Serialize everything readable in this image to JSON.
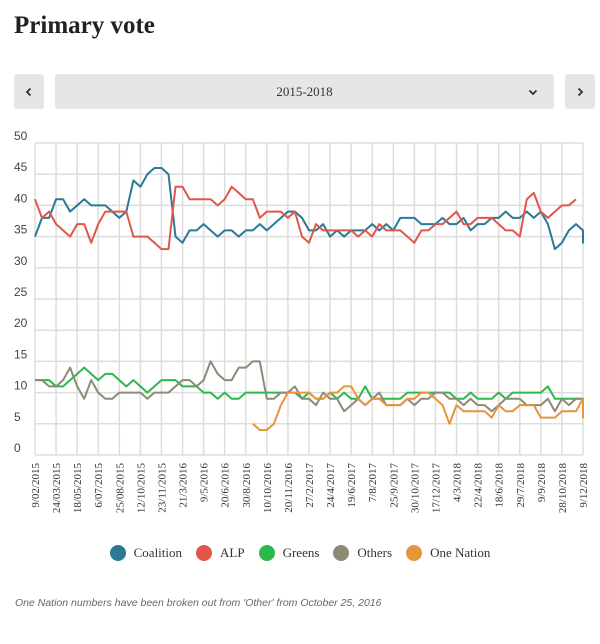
{
  "page": {
    "title": "Primary vote",
    "prev_icon": "chevron-left-icon",
    "next_icon": "chevron-right-icon",
    "period_select": {
      "value": "2015-2018",
      "icon": "chevron-down-icon"
    },
    "footnote": "One Nation numbers have been broken out from 'Other' from October 25, 2016"
  },
  "chart_data": {
    "type": "line",
    "title": "",
    "xlabel": "",
    "ylabel": "",
    "ylim": [
      0,
      50
    ],
    "yticks": [
      0,
      5,
      10,
      15,
      20,
      25,
      30,
      35,
      40,
      45,
      50
    ],
    "grid": true,
    "legend_position": "bottom-center",
    "x_tick_labels": [
      "9/02/2015",
      "24/03/2015",
      "18/05/2015",
      "6/07/2015",
      "25/08/2015",
      "12/10/2015",
      "23/11/2015",
      "21/3/2016",
      "9/5/2016",
      "20/6/2016",
      "30/8/2016",
      "10/10/2016",
      "20/11/2016",
      "27/2/2017",
      "24/4/2017",
      "19/6/2017",
      "7/8/2017",
      "25/9/2017",
      "30/10/2017",
      "17/12/2017",
      "4/3/2018",
      "22/4/2018",
      "18/6/2018",
      "29/7/2018",
      "9/9/2018",
      "28/10/2018",
      "9/12/2018"
    ],
    "points_per_tick_interval": 3,
    "series": [
      {
        "name": "Coalition",
        "color": "#2a7a96",
        "values": [
          35,
          38,
          38,
          41,
          41,
          39,
          40,
          41,
          40,
          40,
          40,
          39,
          38,
          39,
          44,
          43,
          45,
          46,
          46,
          45,
          35,
          34,
          36,
          36,
          37,
          36,
          35,
          36,
          36,
          35,
          36,
          36,
          37,
          36,
          37,
          38,
          39,
          39,
          38,
          36,
          36,
          37,
          35,
          36,
          35,
          36,
          36,
          36,
          37,
          36,
          37,
          36,
          38,
          38,
          38,
          37,
          37,
          37,
          38,
          37,
          37,
          38,
          36,
          37,
          37,
          38,
          38,
          39,
          38,
          38,
          39,
          38,
          39,
          37,
          33,
          34,
          36,
          37,
          36,
          35,
          34,
          35
        ],
        "start_index": 0
      },
      {
        "name": "ALP",
        "color": "#e0574a",
        "values": [
          41,
          38,
          39,
          37,
          36,
          35,
          37,
          37,
          34,
          37,
          39,
          39,
          39,
          39,
          35,
          35,
          35,
          34,
          33,
          33,
          43,
          43,
          41,
          41,
          41,
          41,
          40,
          41,
          43,
          42,
          41,
          41,
          38,
          39,
          39,
          39,
          38,
          39,
          35,
          34,
          37,
          36,
          36,
          36,
          36,
          36,
          35,
          36,
          35,
          37,
          36,
          36,
          36,
          35,
          34,
          36,
          36,
          37,
          37,
          38,
          39,
          37,
          37,
          38,
          38,
          38,
          37,
          36,
          36,
          35,
          41,
          42,
          39,
          38,
          39,
          40,
          40,
          41
        ],
        "start_index": 0
      },
      {
        "name": "Greens",
        "color": "#2db84d",
        "values": [
          12,
          12,
          12,
          11,
          11,
          12,
          13,
          14,
          13,
          12,
          13,
          13,
          12,
          11,
          12,
          11,
          10,
          11,
          12,
          12,
          12,
          11,
          11,
          11,
          10,
          10,
          9,
          10,
          9,
          9,
          10,
          10,
          10,
          10,
          10,
          10,
          10,
          10,
          9,
          10,
          9,
          9,
          10,
          9,
          10,
          9,
          9,
          11,
          9,
          9,
          9,
          9,
          9,
          10,
          10,
          10,
          10,
          10,
          10,
          10,
          9,
          9,
          10,
          9,
          9,
          9,
          10,
          9,
          10,
          10,
          10,
          10,
          10,
          11,
          9,
          9,
          9,
          9,
          9,
          9
        ],
        "start_index": 0
      },
      {
        "name": "Others",
        "color": "#8b8b78",
        "values": [
          12,
          12,
          11,
          11,
          12,
          14,
          11,
          9,
          12,
          10,
          9,
          9,
          10,
          10,
          10,
          10,
          9,
          10,
          10,
          10,
          11,
          12,
          12,
          11,
          12,
          15,
          13,
          12,
          12,
          14,
          14,
          15,
          15,
          9,
          9,
          10,
          10,
          11,
          9,
          9,
          8,
          10,
          9,
          9,
          7,
          8,
          9,
          8,
          9,
          10,
          8,
          8,
          8,
          9,
          8,
          9,
          9,
          10,
          10,
          9,
          9,
          8,
          9,
          8,
          8,
          7,
          8,
          9,
          9,
          9,
          8,
          8,
          8,
          9,
          7,
          9,
          8,
          9,
          9,
          8,
          7
        ],
        "start_index": 0
      },
      {
        "name": "One Nation",
        "color": "#e8943a",
        "values": [
          5,
          4,
          4,
          5,
          8,
          10,
          10,
          10,
          10,
          9,
          9,
          10,
          10,
          11,
          11,
          9,
          8,
          9,
          9,
          8,
          8,
          8,
          9,
          9,
          10,
          10,
          9,
          8,
          5,
          8,
          7,
          7,
          7,
          7,
          6,
          8,
          7,
          7,
          8,
          8,
          8,
          6,
          6,
          6,
          7,
          7,
          7,
          9,
          9,
          9,
          7,
          6,
          6,
          6,
          6,
          6,
          6,
          8,
          7
        ],
        "start_index": 31
      }
    ]
  }
}
